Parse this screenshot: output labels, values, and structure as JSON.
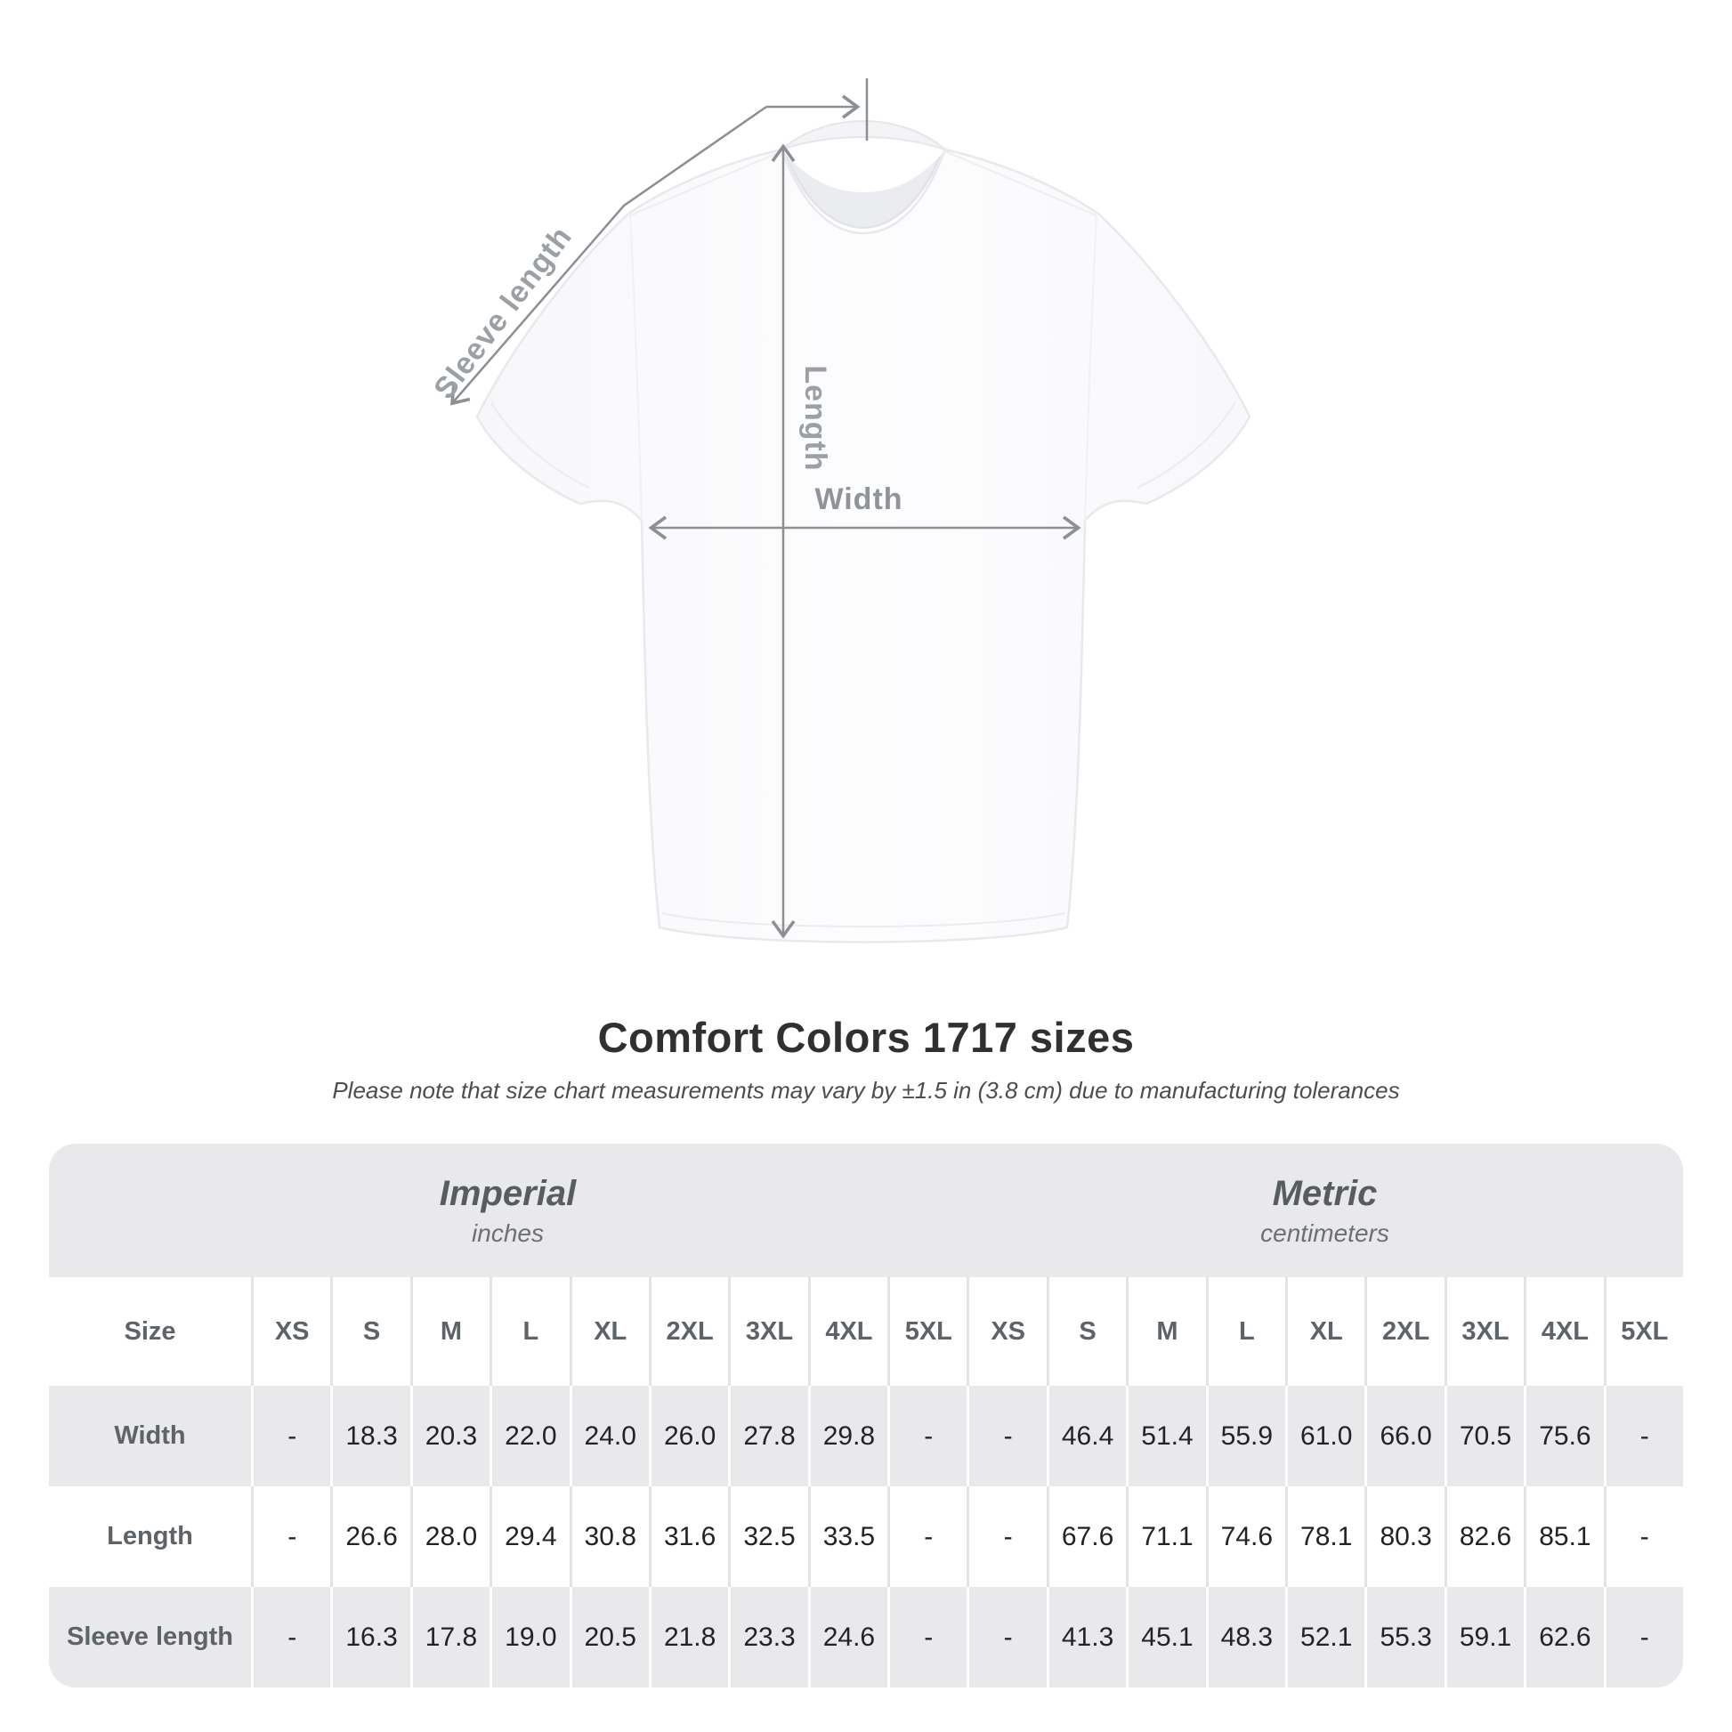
{
  "diagram": {
    "sleeve_label": "Sleeve length",
    "length_label": "Length",
    "width_label": "Width"
  },
  "header": {
    "title": "Comfort Colors 1717 sizes",
    "subtitle": "Please note that size chart measurements may vary by ±1.5 in (3.8 cm) due to manufacturing tolerances"
  },
  "table": {
    "unit_groups": [
      {
        "label": "Imperial",
        "unit": "inches"
      },
      {
        "label": "Metric",
        "unit": "centimeters"
      }
    ],
    "size_header": "Size",
    "sizes": [
      "XS",
      "S",
      "M",
      "L",
      "XL",
      "2XL",
      "3XL",
      "4XL",
      "5XL"
    ],
    "rows": [
      {
        "label": "Width",
        "imperial": [
          "-",
          "18.3",
          "20.3",
          "22.0",
          "24.0",
          "26.0",
          "27.8",
          "29.8",
          "-"
        ],
        "metric": [
          "-",
          "46.4",
          "51.4",
          "55.9",
          "61.0",
          "66.0",
          "70.5",
          "75.6",
          "-"
        ]
      },
      {
        "label": "Length",
        "imperial": [
          "-",
          "26.6",
          "28.0",
          "29.4",
          "30.8",
          "31.6",
          "32.5",
          "33.5",
          "-"
        ],
        "metric": [
          "-",
          "67.6",
          "71.1",
          "74.6",
          "78.1",
          "80.3",
          "82.6",
          "85.1",
          "-"
        ]
      },
      {
        "label": "Sleeve length",
        "imperial": [
          "-",
          "16.3",
          "17.8",
          "19.0",
          "20.5",
          "21.8",
          "23.3",
          "24.6",
          "-"
        ],
        "metric": [
          "-",
          "41.3",
          "45.1",
          "48.3",
          "52.1",
          "55.3",
          "59.1",
          "62.6",
          "-"
        ]
      }
    ]
  },
  "colors": {
    "table_gray": "#e9e9eb",
    "arrow_line": "#8b9095",
    "diagram_label": "#9ba0a5",
    "group_text": "#575c60",
    "cell_text": "#212325"
  }
}
